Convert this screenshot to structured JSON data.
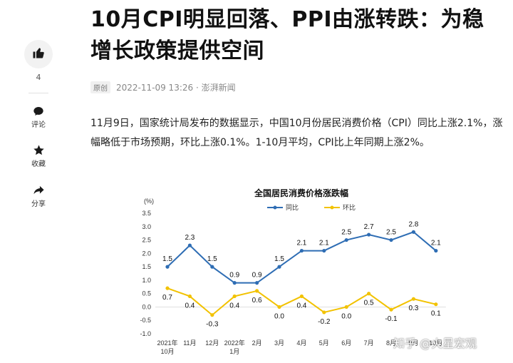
{
  "article": {
    "title": "10月CPI明显回落、PPI由涨转跌：为稳增长政策提供空间",
    "tag": "原创",
    "meta": "2022-11-09 13:26 · 澎湃新闻",
    "body": "11月9日，国家统计局发布的数据显示，中国10月份居民消费价格（CPI）同比上涨2.1%，涨幅略低于市场预期，环比上涨0.1%。1-10月平均，CPI比上年同期上涨2%。"
  },
  "sidebar": {
    "like_count": "4",
    "comment_label": "评论",
    "collect_label": "收藏",
    "share_label": "分享",
    "icons": [
      "thumb-up-icon",
      "comment-icon",
      "star-icon",
      "share-icon"
    ]
  },
  "watermark": "知乎 @火星宏观",
  "chart_data": {
    "type": "line",
    "title": "全国居民消费价格涨跌幅",
    "ylabel": "(%)",
    "ylim": [
      -1.0,
      3.5
    ],
    "yticks": [
      "3.5",
      "3.0",
      "2.5",
      "2.0",
      "1.5",
      "1.0",
      "0.5",
      "0.0",
      "-0.5",
      "-1.0"
    ],
    "categories": [
      "2021年10月",
      "11月",
      "12月",
      "2022年1月",
      "2月",
      "3月",
      "4月",
      "5月",
      "6月",
      "7月",
      "8月",
      "9月",
      "10月"
    ],
    "legend_position": "top",
    "series": [
      {
        "name": "同比",
        "color": "#2e6db4",
        "values": [
          1.5,
          2.3,
          1.5,
          0.9,
          0.9,
          1.5,
          2.1,
          2.1,
          2.5,
          2.7,
          2.5,
          2.8,
          2.1
        ],
        "labels": [
          "1.5",
          "2.3",
          "1.5",
          "0.9",
          "0.9",
          "1.5",
          "2.1",
          "2.1",
          "2.5",
          "2.7",
          "2.5",
          "2.8",
          "2.1"
        ]
      },
      {
        "name": "环比",
        "color": "#f2c200",
        "values": [
          0.7,
          0.4,
          -0.3,
          0.4,
          0.6,
          0.0,
          0.4,
          -0.2,
          0.0,
          0.5,
          -0.1,
          0.3,
          0.1
        ],
        "labels": [
          "0.7",
          "0.4",
          "-0.3",
          "0.4",
          "0.6",
          "0.0",
          "0.4",
          "-0.2",
          "0.0",
          "0.5",
          "-0.1",
          "0.3",
          "0.1"
        ]
      }
    ]
  }
}
